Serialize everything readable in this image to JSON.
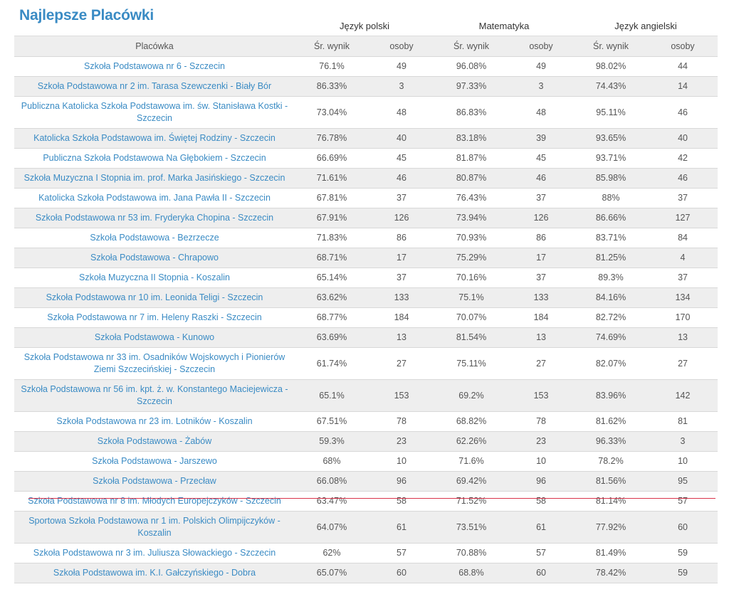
{
  "page": {
    "title": "Najlepsze Placówki"
  },
  "table": {
    "groups": [
      "Język polski",
      "Matematyka",
      "Język angielski"
    ],
    "columns": [
      "Placówka",
      "Śr. wynik",
      "osoby",
      "Śr. wynik",
      "osoby",
      "Śr. wynik",
      "osoby"
    ],
    "rows": [
      [
        "Szkoła Podstawowa nr 6 - Szczecin",
        "76.1%",
        "49",
        "96.08%",
        "49",
        "98.02%",
        "44"
      ],
      [
        "Szkoła Podstawowa nr 2 im. Tarasa Szewczenki - Biały Bór",
        "86.33%",
        "3",
        "97.33%",
        "3",
        "74.43%",
        "14"
      ],
      [
        "Publiczna Katolicka Szkoła Podstawowa im. św. Stanisława Kostki - Szczecin",
        "73.04%",
        "48",
        "86.83%",
        "48",
        "95.11%",
        "46"
      ],
      [
        "Katolicka Szkoła Podstawowa im. Świętej Rodziny - Szczecin",
        "76.78%",
        "40",
        "83.18%",
        "39",
        "93.65%",
        "40"
      ],
      [
        "Publiczna Szkoła Podstawowa Na Głębokiem - Szczecin",
        "66.69%",
        "45",
        "81.87%",
        "45",
        "93.71%",
        "42"
      ],
      [
        "Szkoła Muzyczna I Stopnia im. prof. Marka Jasińskiego - Szczecin",
        "71.61%",
        "46",
        "80.87%",
        "46",
        "85.98%",
        "46"
      ],
      [
        "Katolicka Szkoła Podstawowa im. Jana Pawła II - Szczecin",
        "67.81%",
        "37",
        "76.43%",
        "37",
        "88%",
        "37"
      ],
      [
        "Szkoła Podstawowa nr 53 im. Fryderyka Chopina - Szczecin",
        "67.91%",
        "126",
        "73.94%",
        "126",
        "86.66%",
        "127"
      ],
      [
        "Szkoła Podstawowa - Bezrzecze",
        "71.83%",
        "86",
        "70.93%",
        "86",
        "83.71%",
        "84"
      ],
      [
        "Szkoła Podstawowa - Chrapowo",
        "68.71%",
        "17",
        "75.29%",
        "17",
        "81.25%",
        "4"
      ],
      [
        "Szkoła Muzyczna II Stopnia - Koszalin",
        "65.14%",
        "37",
        "70.16%",
        "37",
        "89.3%",
        "37"
      ],
      [
        "Szkoła Podstawowa nr 10 im. Leonida Teligi - Szczecin",
        "63.62%",
        "133",
        "75.1%",
        "133",
        "84.16%",
        "134"
      ],
      [
        "Szkoła Podstawowa nr 7 im. Heleny Raszki - Szczecin",
        "68.77%",
        "184",
        "70.07%",
        "184",
        "82.72%",
        "170"
      ],
      [
        "Szkoła Podstawowa - Kunowo",
        "63.69%",
        "13",
        "81.54%",
        "13",
        "74.69%",
        "13"
      ],
      [
        "Szkoła Podstawowa nr 33 im. Osadników Wojskowych i Pionierów Ziemi Szczecińskiej - Szczecin",
        "61.74%",
        "27",
        "75.11%",
        "27",
        "82.07%",
        "27"
      ],
      [
        "Szkoła Podstawowa nr 56 im. kpt. ż. w. Konstantego Maciejewicza - Szczecin",
        "65.1%",
        "153",
        "69.2%",
        "153",
        "83.96%",
        "142"
      ],
      [
        "Szkoła Podstawowa nr 23 im. Lotników - Koszalin",
        "67.51%",
        "78",
        "68.82%",
        "78",
        "81.62%",
        "81"
      ],
      [
        "Szkoła Podstawowa - Żabów",
        "59.3%",
        "23",
        "62.26%",
        "23",
        "96.33%",
        "3"
      ],
      [
        "Szkoła Podstawowa - Jarszewo",
        "68%",
        "10",
        "71.6%",
        "10",
        "78.2%",
        "10"
      ],
      [
        "Szkoła Podstawowa - Przecław",
        "66.08%",
        "96",
        "69.42%",
        "96",
        "81.56%",
        "95"
      ],
      [
        "Szkoła Podstawowa nr 8 im. Młodych Europejczyków - Szczecin",
        "63.47%",
        "58",
        "71.52%",
        "58",
        "81.14%",
        "57"
      ],
      [
        "Sportowa Szkoła Podstawowa nr 1 im. Polskich Olimpijczyków - Koszalin",
        "64.07%",
        "61",
        "73.51%",
        "61",
        "77.92%",
        "60"
      ],
      [
        "Szkoła Podstawowa nr 3 im. Juliusza Słowackiego - Szczecin",
        "62%",
        "57",
        "70.88%",
        "57",
        "81.49%",
        "59"
      ],
      [
        "Szkoła Podstawowa im. K.I. Gałczyńskiego - Dobra",
        "65.07%",
        "60",
        "68.8%",
        "60",
        "78.42%",
        "59"
      ]
    ]
  },
  "colors": {
    "title": "#3a8bc4",
    "link": "#3a8bc4",
    "stripe": "#eeeeee",
    "highlight_line": "#d9334a"
  }
}
